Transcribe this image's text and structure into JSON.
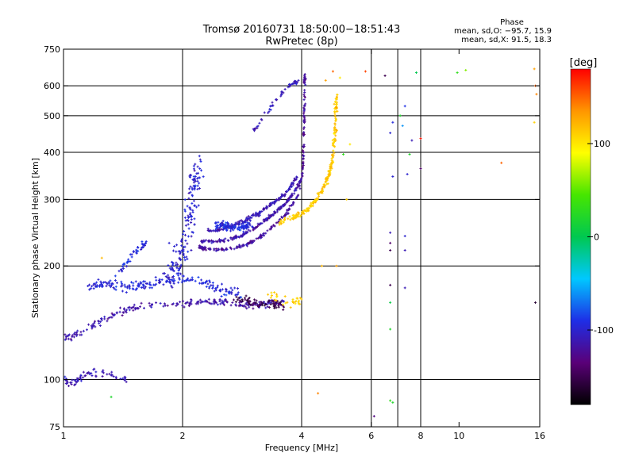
{
  "chart_data": {
    "type": "scatter",
    "title": "Tromsø 20160731 18:50:00−18:51:43",
    "subtitle": "RwPretec (8p)",
    "xlabel": "Frequency [MHz]",
    "ylabel": "Stationary phase Virtual Height [km]",
    "x_scale": "log",
    "y_scale": "log",
    "xlim": [
      1,
      16
    ],
    "ylim": [
      75,
      750
    ],
    "x_ticks": [
      1,
      2,
      4,
      6,
      8,
      10,
      16
    ],
    "y_ticks": [
      75,
      100,
      200,
      300,
      400,
      500,
      600,
      750
    ],
    "x_gridlines": [
      2,
      4,
      6,
      7,
      8
    ],
    "y_gridlines": [
      100,
      200,
      300,
      400,
      500,
      600
    ],
    "grid": true,
    "stats": {
      "heading": "Phase",
      "line1": "mean, sd,O: −95.7, 15.9",
      "line2": "mean, sd,X:  91.5, 18.3"
    },
    "colorbar": {
      "label": "[deg]",
      "range": [
        -180,
        180
      ],
      "ticks": [
        100,
        0,
        -100
      ],
      "colormap": [
        "#000000",
        "#5a0078",
        "#1e2ee6",
        "#00c8ff",
        "#00c850",
        "#46e600",
        "#ffff00",
        "#ff9600",
        "#ff0000"
      ]
    },
    "series": [
      {
        "kind": "bands",
        "bands": [
          {
            "phase": -115,
            "count": 230,
            "spread": 0.025,
            "pts": [
              [
                1.0,
                128
              ],
              [
                1.05,
                130
              ],
              [
                1.1,
                132
              ],
              [
                1.2,
                140
              ],
              [
                1.3,
                147
              ],
              [
                1.4,
                152
              ],
              [
                1.5,
                155
              ],
              [
                1.6,
                157
              ],
              [
                1.8,
                158
              ],
              [
                2.0,
                159
              ],
              [
                2.2,
                160
              ],
              [
                2.4,
                161
              ],
              [
                2.6,
                160
              ],
              [
                2.8,
                158
              ],
              [
                3.0,
                157
              ],
              [
                3.2,
                158
              ],
              [
                3.4,
                160
              ],
              [
                3.6,
                161
              ]
            ]
          },
          {
            "phase": -95,
            "count": 200,
            "spread": 0.035,
            "pts": [
              [
                1.15,
                175
              ],
              [
                1.3,
                180
              ],
              [
                1.45,
                175
              ],
              [
                1.6,
                178
              ],
              [
                1.8,
                183
              ],
              [
                2.0,
                185
              ],
              [
                2.3,
                180
              ],
              [
                2.6,
                170
              ],
              [
                2.8,
                168
              ]
            ]
          },
          {
            "phase": -100,
            "count": 160,
            "spread": 0.08,
            "pts": [
              [
                1.8,
                180
              ],
              [
                1.95,
                205
              ],
              [
                2.05,
                240
              ],
              [
                2.1,
                280
              ],
              [
                2.15,
                330
              ],
              [
                2.2,
                370
              ]
            ]
          },
          {
            "phase": -120,
            "count": 230,
            "spread": 0.012,
            "pts": [
              [
                2.2,
                225
              ],
              [
                2.3,
                222
              ],
              [
                2.5,
                221
              ],
              [
                2.7,
                223
              ],
              [
                2.9,
                228
              ],
              [
                3.1,
                236
              ],
              [
                3.3,
                248
              ],
              [
                3.5,
                262
              ],
              [
                3.7,
                280
              ],
              [
                3.9,
                305
              ],
              [
                4.02,
                350
              ],
              [
                4.05,
                420
              ],
              [
                4.06,
                500
              ],
              [
                4.07,
                600
              ],
              [
                4.07,
                640
              ]
            ]
          },
          {
            "phase": -115,
            "count": 180,
            "spread": 0.012,
            "pts": [
              [
                2.2,
                233
              ],
              [
                2.4,
                232
              ],
              [
                2.6,
                234
              ],
              [
                2.8,
                240
              ],
              [
                3.0,
                250
              ],
              [
                3.2,
                262
              ],
              [
                3.4,
                275
              ],
              [
                3.6,
                290
              ],
              [
                3.8,
                310
              ],
              [
                4.0,
                340
              ]
            ]
          },
          {
            "phase": -110,
            "count": 170,
            "spread": 0.014,
            "pts": [
              [
                2.3,
                248
              ],
              [
                2.5,
                250
              ],
              [
                2.7,
                256
              ],
              [
                2.9,
                265
              ],
              [
                3.1,
                275
              ],
              [
                3.3,
                288
              ],
              [
                3.5,
                300
              ],
              [
                3.7,
                318
              ],
              [
                3.9,
                345
              ]
            ]
          },
          {
            "phase": 112,
            "count": 240,
            "spread": 0.018,
            "pts": [
              [
                3.5,
                260
              ],
              [
                3.8,
                268
              ],
              [
                4.1,
                280
              ],
              [
                4.3,
                295
              ],
              [
                4.5,
                315
              ],
              [
                4.65,
                340
              ],
              [
                4.75,
                370
              ],
              [
                4.82,
                410
              ],
              [
                4.86,
                460
              ],
              [
                4.88,
                520
              ],
              [
                4.9,
                570
              ]
            ]
          },
          {
            "phase": -95,
            "count": 120,
            "spread": 0.03,
            "pts": [
              [
                2.4,
                258
              ],
              [
                2.6,
                255
              ],
              [
                2.8,
                253
              ],
              [
                3.0,
                258
              ]
            ]
          },
          {
            "phase": -110,
            "count": 70,
            "spread": 0.03,
            "pts": [
              [
                1.0,
                100
              ],
              [
                1.05,
                98
              ],
              [
                1.15,
                104
              ],
              [
                1.3,
                104
              ],
              [
                1.45,
                100
              ]
            ]
          },
          {
            "phase": -110,
            "count": 50,
            "spread": 0.015,
            "pts": [
              [
                3.0,
                450
              ],
              [
                3.4,
                540
              ],
              [
                3.7,
                600
              ],
              [
                3.95,
                620
              ]
            ]
          },
          {
            "phase": -95,
            "count": 45,
            "spread": 0.025,
            "pts": [
              [
                1.35,
                190
              ],
              [
                1.45,
                205
              ],
              [
                1.55,
                222
              ],
              [
                1.62,
                230
              ]
            ]
          },
          {
            "phase": -150,
            "count": 70,
            "spread": 0.03,
            "pts": [
              [
                2.7,
                165
              ],
              [
                3.0,
                160
              ],
              [
                3.4,
                158
              ],
              [
                3.6,
                157
              ]
            ]
          },
          {
            "phase": 110,
            "count": 30,
            "spread": 0.04,
            "pts": [
              [
                3.3,
                170
              ],
              [
                3.8,
                158
              ],
              [
                4.0,
                162
              ]
            ]
          }
        ]
      },
      {
        "kind": "points",
        "points": [
          [
            6.7,
            245,
            -110
          ],
          [
            6.7,
            230,
            -140
          ],
          [
            6.7,
            220,
            -150
          ],
          [
            6.7,
            178,
            -150
          ],
          [
            6.7,
            160,
            5
          ],
          [
            6.7,
            136,
            20
          ],
          [
            6.7,
            88,
            30
          ],
          [
            6.8,
            87,
            20
          ],
          [
            7.3,
            240,
            -100
          ],
          [
            7.3,
            220,
            -110
          ],
          [
            7.3,
            175,
            -110
          ],
          [
            7.4,
            350,
            -100
          ],
          [
            7.5,
            395,
            20
          ],
          [
            7.6,
            430,
            -110
          ],
          [
            7.2,
            470,
            -60
          ],
          [
            7.1,
            500,
            20
          ],
          [
            7.3,
            530,
            -90
          ],
          [
            6.8,
            480,
            -95
          ],
          [
            6.7,
            450,
            -100
          ],
          [
            6.8,
            345,
            -100
          ],
          [
            8.0,
            435,
            175
          ],
          [
            8.0,
            362,
            -140
          ],
          [
            6.5,
            638,
            -150
          ],
          [
            7.8,
            650,
            0
          ],
          [
            9.9,
            650,
            30
          ],
          [
            12.8,
            375,
            150
          ],
          [
            15.5,
            665,
            130
          ],
          [
            15.6,
            600,
            150
          ],
          [
            15.7,
            570,
            140
          ],
          [
            15.5,
            480,
            110
          ],
          [
            15.6,
            160,
            -160
          ],
          [
            10.4,
            660,
            60
          ],
          [
            4.6,
            620,
            130
          ],
          [
            4.8,
            655,
            150
          ],
          [
            5.0,
            630,
            100
          ],
          [
            4.5,
            200,
            120
          ],
          [
            4.4,
            92,
            140
          ],
          [
            6.1,
            80,
            -130
          ],
          [
            5.1,
            395,
            30
          ],
          [
            5.2,
            300,
            110
          ],
          [
            5.8,
            655,
            160
          ],
          [
            5.3,
            420,
            100
          ],
          [
            4.9,
            200,
            130
          ],
          [
            1.32,
            90,
            20
          ],
          [
            1.25,
            210,
            120
          ],
          [
            1.85,
            230,
            -100
          ]
        ]
      }
    ]
  }
}
